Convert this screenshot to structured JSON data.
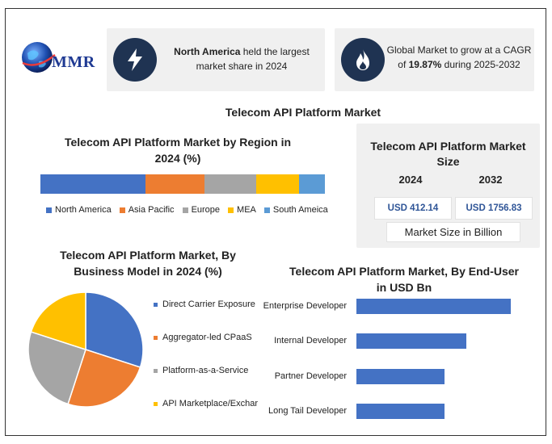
{
  "logo": {
    "text": "MMR"
  },
  "cards": [
    {
      "icon": "lightning-icon",
      "bold": "North America",
      "text_rest": " held the largest market share in 2024"
    },
    {
      "icon": "flame-icon",
      "text_pre": "Global Market to grow at a CAGR of ",
      "bold": "19.87%",
      "text_post": " during 2025-2032"
    }
  ],
  "main_title": "Telecom API Platform Market",
  "chart_data": [
    {
      "type": "bar",
      "orientation": "stacked-horizontal",
      "title": "Telecom API Platform Market by Region in 2024 (%)",
      "categories": [
        "North America",
        "Asia Pacific",
        "Europe",
        "MEA",
        "South Ameica"
      ],
      "values": [
        36.6,
        20.5,
        18.1,
        14.8,
        9.0
      ],
      "colors": [
        "#4472c4",
        "#ed7d31",
        "#a5a5a5",
        "#ffc000",
        "#5b9bd5"
      ],
      "legend": "bottom"
    },
    {
      "type": "pie",
      "title": "Telecom API Platform Market, By Business Model in 2024 (%)",
      "categories": [
        "Direct Carrier Exposure",
        "Aggregator-led CPaaS",
        "Platform-as-a-Service",
        "API Marketplace/Exchar"
      ],
      "values": [
        30,
        25,
        25,
        20
      ],
      "colors": [
        "#4472c4",
        "#ed7d31",
        "#a5a5a5",
        "#ffc000"
      ],
      "legend": "right"
    },
    {
      "type": "bar",
      "orientation": "horizontal",
      "title": "Telecom API Platform Market, By End-User in USD Bn",
      "categories": [
        "Enterprise Developer",
        "Internal Developer",
        "Partner Developer",
        "Long Tail Developer"
      ],
      "values": [
        190,
        135,
        108,
        108
      ],
      "xlim": [
        0,
        200
      ],
      "color": "#4472c4"
    }
  ],
  "market_size": {
    "title": "Telecom API Platform Market Size",
    "years": [
      "2024",
      "2032"
    ],
    "values": [
      "USD 412.14",
      "USD 1756.83"
    ],
    "unit_note": "Market Size in Billion"
  }
}
